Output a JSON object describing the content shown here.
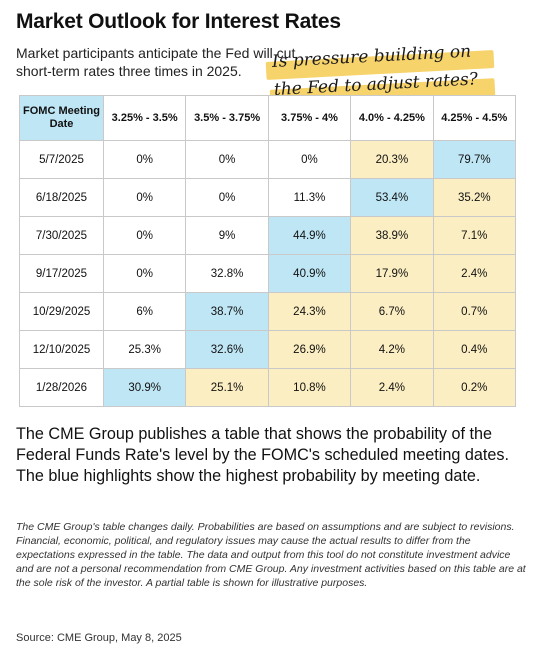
{
  "title": "Market Outlook for Interest Rates",
  "subtitle": "Market participants anticipate the Fed will cut short-term rates three times in 2025.",
  "callout": {
    "line1": "Is pressure building on",
    "line2": "the Fed to adjust rates?"
  },
  "colors": {
    "highest_probability": "#bfe6f5",
    "secondary": "#fbeec2",
    "callout_highlight": "#f7d36b"
  },
  "chart_data": {
    "type": "table",
    "corner_header": "FOMC Meeting Date",
    "columns": [
      "3.25% - 3.5%",
      "3.5% - 3.75%",
      "3.75% - 4%",
      "4.0% - 4.25%",
      "4.25% - 4.5%"
    ],
    "rows": [
      {
        "date": "5/7/2025",
        "values": [
          "0%",
          "0%",
          "0%",
          "20.3%",
          "79.7%"
        ],
        "fills": [
          "w",
          "w",
          "w",
          "y",
          "b"
        ]
      },
      {
        "date": "6/18/2025",
        "values": [
          "0%",
          "0%",
          "11.3%",
          "53.4%",
          "35.2%"
        ],
        "fills": [
          "w",
          "w",
          "w",
          "b",
          "y"
        ]
      },
      {
        "date": "7/30/2025",
        "values": [
          "0%",
          "9%",
          "44.9%",
          "38.9%",
          "7.1%"
        ],
        "fills": [
          "w",
          "w",
          "b",
          "y",
          "y"
        ]
      },
      {
        "date": "9/17/2025",
        "values": [
          "0%",
          "32.8%",
          "40.9%",
          "17.9%",
          "2.4%"
        ],
        "fills": [
          "w",
          "w",
          "b",
          "y",
          "y"
        ]
      },
      {
        "date": "10/29/2025",
        "values": [
          "6%",
          "38.7%",
          "24.3%",
          "6.7%",
          "0.7%"
        ],
        "fills": [
          "w",
          "b",
          "y",
          "y",
          "y"
        ]
      },
      {
        "date": "12/10/2025",
        "values": [
          "25.3%",
          "32.6%",
          "26.9%",
          "4.2%",
          "0.4%"
        ],
        "fills": [
          "w",
          "b",
          "y",
          "y",
          "y"
        ]
      },
      {
        "date": "1/28/2026",
        "values": [
          "30.9%",
          "25.1%",
          "10.8%",
          "2.4%",
          "0.2%"
        ],
        "fills": [
          "b",
          "y",
          "y",
          "y",
          "y"
        ]
      }
    ]
  },
  "description": "The CME Group publishes a table that shows the probability of the Federal Funds Rate's level by the FOMC's scheduled meeting dates. The blue highlights show the highest probability by meeting date.",
  "disclaimer": "The CME Group's table changes daily. Probabilities are based on assumptions and are subject to revisions. Financial, economic, political, and regulatory issues may cause the actual results to differ from the expectations expressed in the table. The data and output from this tool do not constitute investment advice and are not a personal recommendation from CME Group. Any investment activities based on this table are at the sole risk of the investor. A partial table is shown for illustrative purposes.",
  "source": "Source: CME Group, May 8, 2025"
}
